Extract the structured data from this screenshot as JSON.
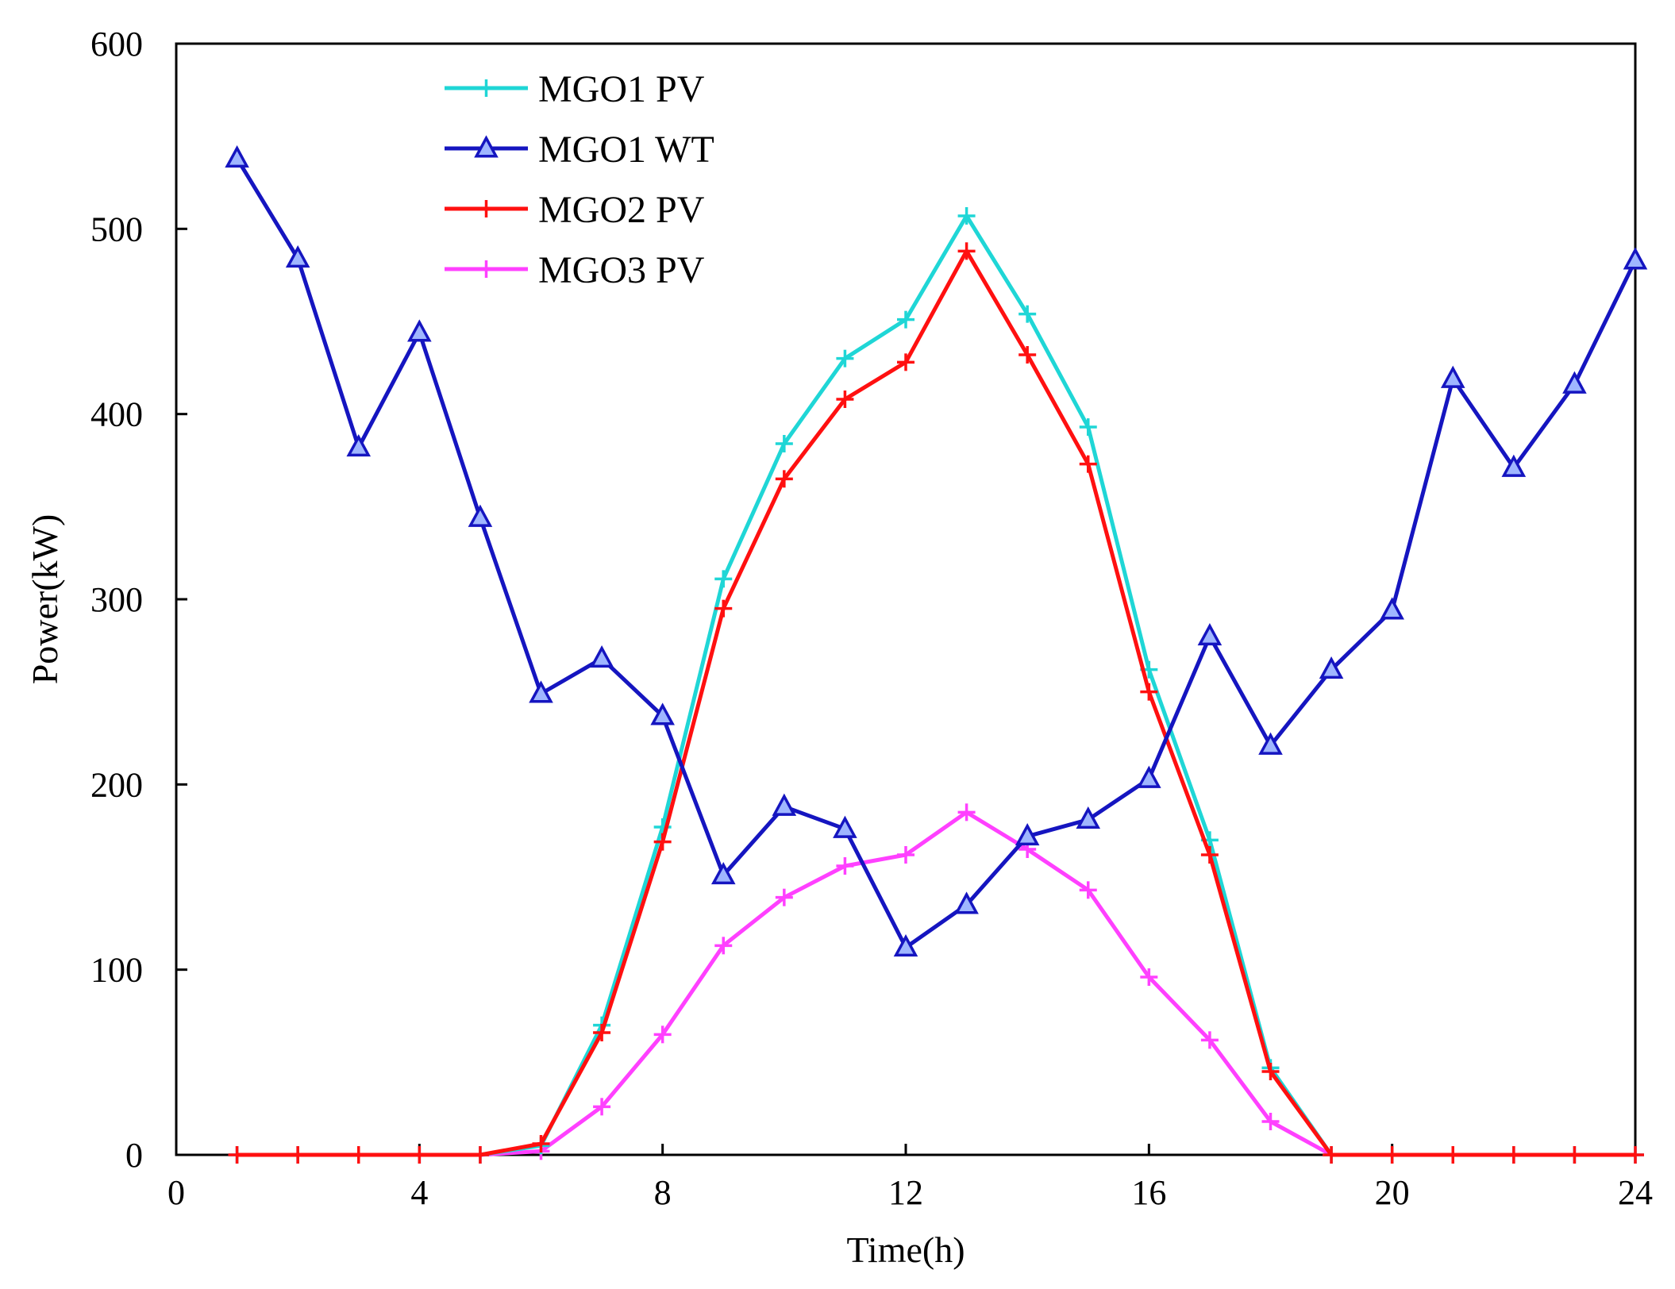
{
  "chart_data": {
    "type": "line",
    "title": "",
    "xlabel": "Time(h)",
    "ylabel": "Power(kW)",
    "xlim": [
      0,
      24
    ],
    "ylim": [
      0,
      600
    ],
    "xticks": [
      0,
      4,
      8,
      12,
      16,
      20,
      24
    ],
    "yticks": [
      0,
      100,
      200,
      300,
      400,
      500,
      600
    ],
    "grid": false,
    "legend_position": "top-left",
    "x": [
      1,
      2,
      3,
      4,
      5,
      6,
      7,
      8,
      9,
      10,
      11,
      12,
      13,
      14,
      15,
      16,
      17,
      18,
      19,
      20,
      21,
      22,
      23,
      24
    ],
    "series": [
      {
        "name": "MGO1 PV",
        "color": "#1FD6D6",
        "marker": "plus",
        "values": [
          0,
          0,
          0,
          0,
          0,
          5,
          70,
          177,
          311,
          384,
          430,
          451,
          507,
          454,
          393,
          262,
          170,
          47,
          0,
          0,
          0,
          0,
          0,
          0
        ]
      },
      {
        "name": "MGO1 WT",
        "color": "#1515C0",
        "marker": "triangle",
        "values": [
          538,
          484,
          382,
          444,
          344,
          249,
          268,
          237,
          151,
          188,
          176,
          112,
          135,
          172,
          181,
          203,
          280,
          221,
          262,
          294,
          419,
          371,
          416,
          483
        ]
      },
      {
        "name": "MGO2 PV",
        "color": "#FF1010",
        "marker": "plus",
        "values": [
          0,
          0,
          0,
          0,
          0,
          6,
          66,
          169,
          295,
          365,
          408,
          428,
          488,
          432,
          373,
          250,
          162,
          45,
          0,
          0,
          0,
          0,
          0,
          0
        ]
      },
      {
        "name": "MGO3 PV",
        "color": "#FF40FF",
        "marker": "plus",
        "values": [
          0,
          0,
          0,
          0,
          0,
          2,
          26,
          65,
          113,
          139,
          156,
          162,
          185,
          165,
          143,
          96,
          62,
          18,
          0,
          0,
          0,
          0,
          0,
          0
        ]
      }
    ]
  }
}
